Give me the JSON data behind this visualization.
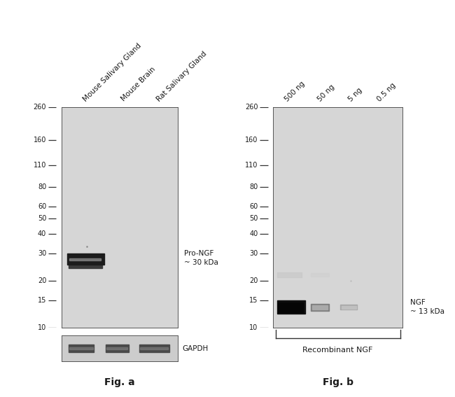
{
  "fig_a": {
    "title": "Fig. a",
    "col_labels": [
      "Mouse Salivary Gland",
      "Mouse Brain",
      "Rat Salivary Gland"
    ],
    "mw_markers": [
      260,
      160,
      110,
      80,
      60,
      50,
      40,
      30,
      20,
      15,
      10
    ],
    "band_label": "Pro-NGF\n~ 30 kDa",
    "gapdh_label": "GAPDH",
    "panel_bg": "#d6d6d6",
    "gapdh_bg": "#cccccc",
    "band_color": "#111111",
    "gapdh_band_color": "#555555"
  },
  "fig_b": {
    "title": "Fig. b",
    "col_labels": [
      "500 ng",
      "50 ng",
      "5 ng",
      "0.5 ng"
    ],
    "mw_markers": [
      260,
      160,
      110,
      80,
      60,
      50,
      40,
      30,
      20,
      15,
      10
    ],
    "band_label": "NGF\n~ 13 kDa",
    "recombinant_label": "Recombinant NGF",
    "panel_bg": "#d6d6d6",
    "band_color": "#111111"
  },
  "background_color": "#ffffff",
  "text_color": "#1a1a1a",
  "title_fontsize": 10,
  "label_fontsize": 7.5,
  "mw_fontsize": 7,
  "col_label_fontsize": 7.5
}
